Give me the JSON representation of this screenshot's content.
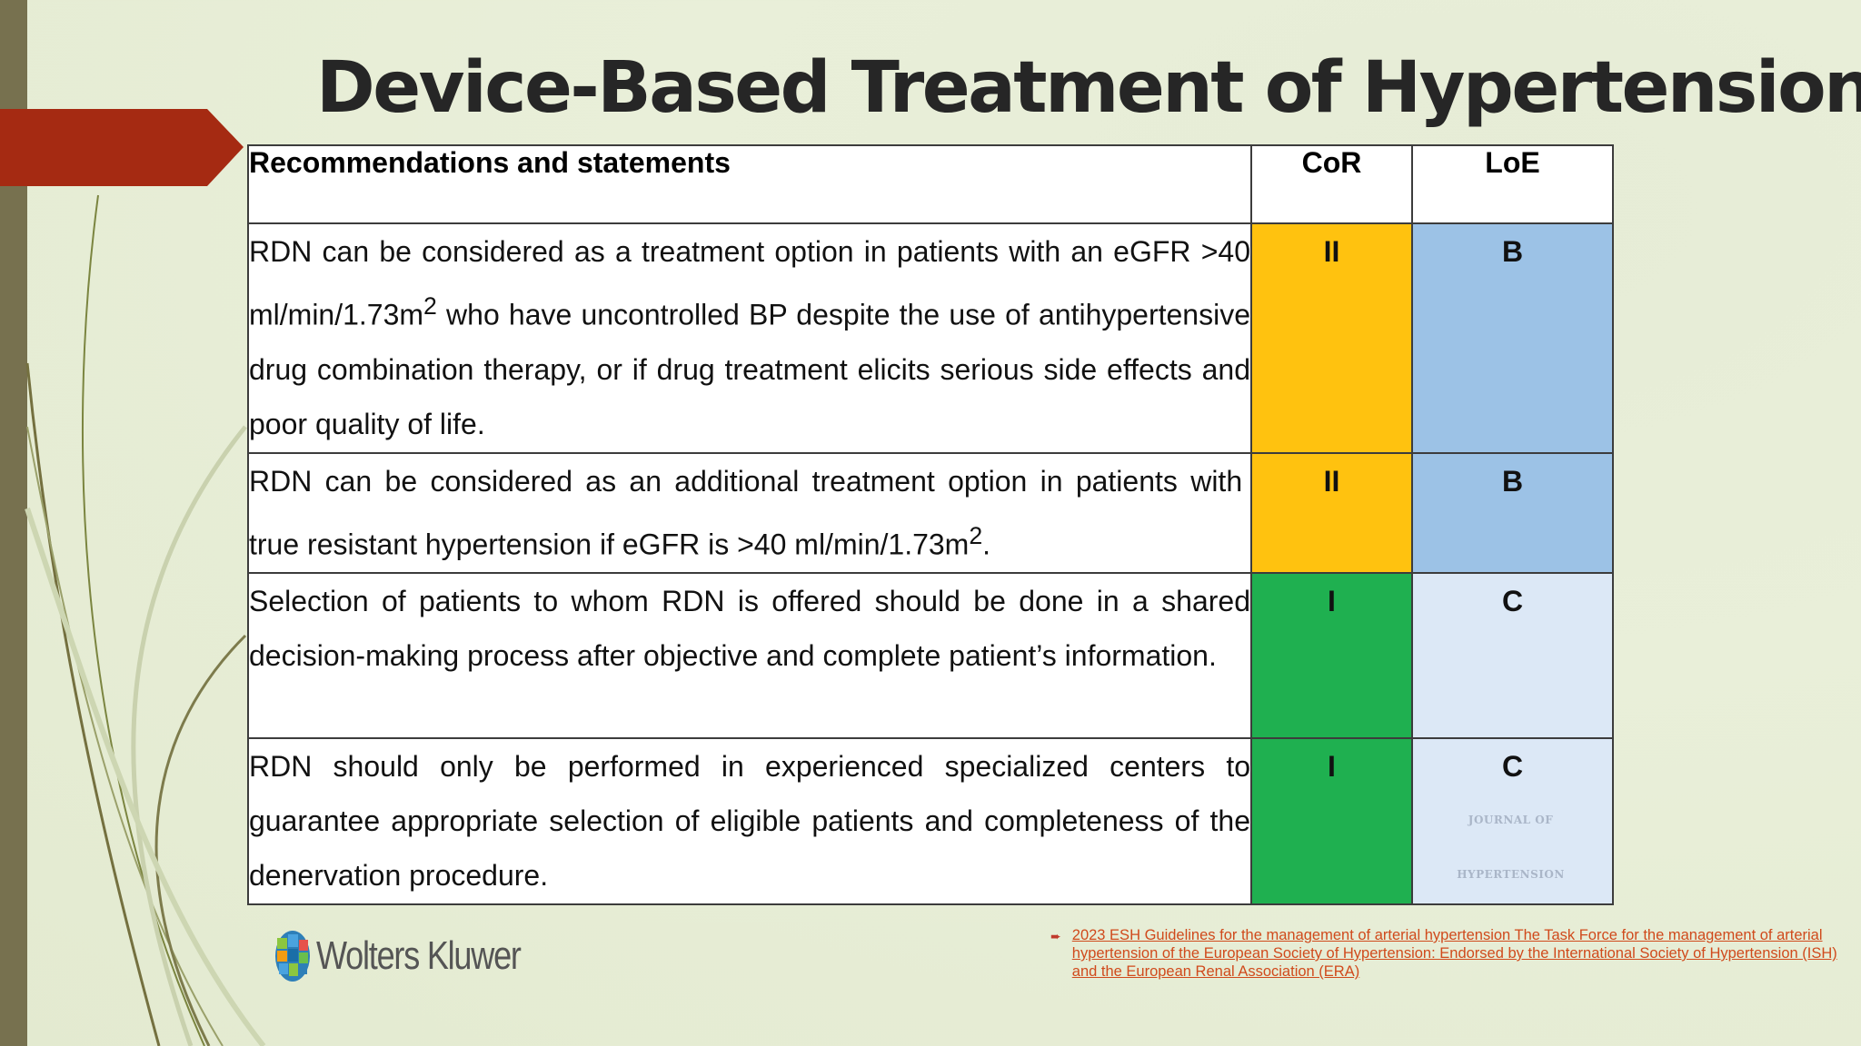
{
  "slide": {
    "title": "Device-Based Treatment of Hypertension"
  },
  "table": {
    "headers": {
      "statement": "Recommendations and statements",
      "cor": "CoR",
      "loe": "LoE"
    },
    "rows": [
      {
        "statement_html": "RDN can be considered as a treatment option in patients with an eGFR &gt;40 ml/min/1.73m<sup>2</sup> who have uncontrolled BP despite the use of antihypertensive drug combination therapy, or if drug treatment elicits serious side effects and poor quality of life.",
        "cor": "II",
        "loe": "B",
        "cor_color": "#ffc20f",
        "loe_color": "#9cc2e6"
      },
      {
        "statement_html": "RDN can be considered as an additional treatment option in patients with&nbsp; true resistant hypertension if eGFR is &gt;40 ml/min/1.73m<sup>2</sup>.",
        "cor": "II",
        "loe": "B",
        "cor_color": "#ffc20f",
        "loe_color": "#9cc2e6"
      },
      {
        "statement_html": "Selection of patients to whom RDN is offered should be done in a shared decision-making process after objective and complete patient’s information.",
        "cor": "I",
        "loe": "C",
        "cor_color": "#1fb050",
        "loe_color": "#dce8f6"
      },
      {
        "statement_html": "RDN should only be performed in experienced specialized centers to guarantee appropriate selection of eligible patients and completeness of the denervation procedure.",
        "cor": "I",
        "loe": "C",
        "cor_color": "#1fb050",
        "loe_color": "#dce8f6"
      }
    ],
    "watermark": "JOURNAL OF HYPERTENSION"
  },
  "logo": {
    "text": "Wolters Kluwer"
  },
  "reference": {
    "bullet": "➨",
    "text": "2023 ESH Guidelines for the management of arterial hypertension The Task Force for the management of arterial hypertension of the European Society of Hypertension: Endorsed by the International Society of Hypertension (ISH) and the European Renal Association (ERA)"
  },
  "colors": {
    "accent_red": "#a52a12",
    "left_bar": "#77714f",
    "link": "#d04a1c"
  }
}
